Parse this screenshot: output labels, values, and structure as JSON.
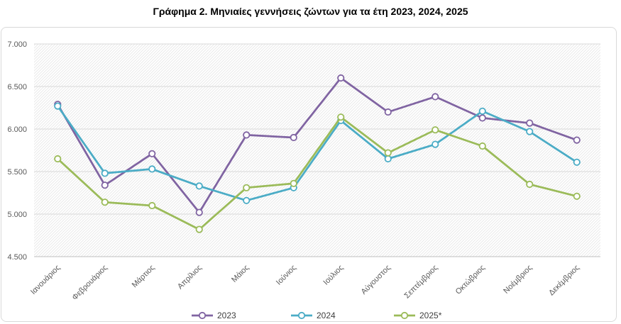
{
  "title": "Γράφημα 2. Μηνιαίες γεννήσεις ζώντων για τα έτη 2023, 2024, 2025",
  "chart_data": {
    "type": "line",
    "title": "Γράφημα 2. Μηνιαίες γεννήσεις ζώντων για τα έτη 2023, 2024, 2025",
    "xlabel": "",
    "ylabel": "",
    "categories": [
      "Ιανουάριος",
      "Φεβρουάριος",
      "Μάρτιος",
      "Απρίλιος",
      "Μάιος",
      "Ιούνιος",
      "Ιούλιος",
      "Αύγουστος",
      "Σεπτέμβριος",
      "Οκτώβριος",
      "Νοέμβριος",
      "Δεκέμβριος"
    ],
    "ylim": [
      4500,
      7000
    ],
    "yticks": [
      4500,
      5000,
      5500,
      6000,
      6500,
      7000
    ],
    "ytick_labels": [
      "4.500",
      "5.000",
      "5.500",
      "6.000",
      "6.500",
      "7.000"
    ],
    "grid": "diagonal hatch background",
    "legend_position": "bottom",
    "series": [
      {
        "name": "2023",
        "color": "#8064a2",
        "values": [
          6290,
          5340,
          5710,
          5020,
          5930,
          5900,
          6600,
          6200,
          6380,
          6130,
          6070,
          5870
        ]
      },
      {
        "name": "2024",
        "color": "#4bacc6",
        "values": [
          6270,
          5480,
          5530,
          5330,
          5160,
          5310,
          6100,
          5650,
          5820,
          6210,
          5970,
          5610
        ]
      },
      {
        "name": "2025*",
        "color": "#9bbb59",
        "values": [
          5650,
          5140,
          5100,
          4820,
          5310,
          5360,
          6140,
          5720,
          5990,
          5800,
          5350,
          5210
        ]
      }
    ]
  }
}
